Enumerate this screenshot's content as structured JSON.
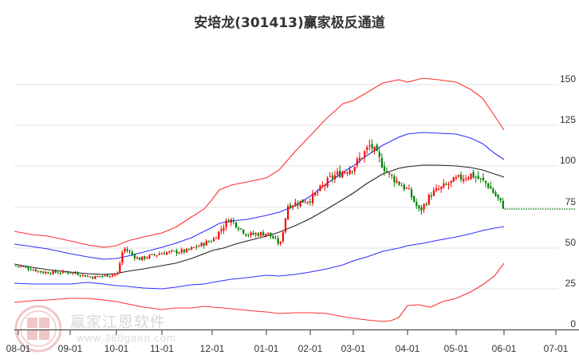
{
  "title": "安培龙(301413)赢家极反通道",
  "watermark": {
    "brand": "赢家江恩软件",
    "url": "www.360gann.com",
    "seal_chars": [
      "江",
      "赢",
      "恩",
      "家"
    ]
  },
  "colors": {
    "up_candle": "#ff0000",
    "down_candle": "#008000",
    "outer_band": "#ff0000",
    "inner_band": "#0000ff",
    "mid_line": "#000000",
    "last_price_line": "#008000",
    "grid": "#e0e0e0",
    "axis": "#333333"
  },
  "chart_data": {
    "type": "candlestick-with-bands",
    "title": "安培龙(301413)赢家极反通道",
    "xlabel": "",
    "ylabel": "",
    "ylim": [
      0,
      150
    ],
    "y_ticks": [
      0,
      25,
      50,
      75,
      100,
      125,
      150
    ],
    "y_axis_position": "right",
    "grid": true,
    "x_ticks": [
      "08-01",
      "09-01",
      "10-01",
      "11-01",
      "12-01",
      "01-01",
      "02-01",
      "03-01",
      "04-01",
      "05-01",
      "06-01",
      "07-01"
    ],
    "last_price": 74,
    "series": [
      {
        "name": "upper_outer_band",
        "color": "#ff0000",
        "points": [
          [
            "08-01",
            62
          ],
          [
            "09-01",
            57
          ],
          [
            "10-01",
            50
          ],
          [
            "10-15",
            51
          ],
          [
            "11-01",
            55
          ],
          [
            "11-15",
            60
          ],
          [
            "12-01",
            67
          ],
          [
            "12-15",
            73
          ],
          [
            "01-01",
            78
          ],
          [
            "01-15",
            84
          ],
          [
            "02-01",
            95
          ],
          [
            "02-15",
            108
          ],
          [
            "03-01",
            122
          ],
          [
            "03-15",
            134
          ],
          [
            "04-01",
            148
          ],
          [
            "04-10",
            152
          ],
          [
            "04-20",
            148
          ],
          [
            "05-01",
            151
          ],
          [
            "05-15",
            146
          ],
          [
            "06-01",
            121
          ]
        ]
      },
      {
        "name": "upper_inner_band",
        "color": "#0000ff",
        "points": [
          [
            "08-01",
            55
          ],
          [
            "09-01",
            51
          ],
          [
            "10-01",
            45
          ],
          [
            "10-15",
            46
          ],
          [
            "11-01",
            50
          ],
          [
            "11-15",
            53
          ],
          [
            "12-01",
            57
          ],
          [
            "12-15",
            62
          ],
          [
            "01-01",
            64
          ],
          [
            "01-15",
            66
          ],
          [
            "02-01",
            70
          ],
          [
            "02-15",
            80
          ],
          [
            "03-01",
            91
          ],
          [
            "03-15",
            103
          ],
          [
            "04-01",
            117
          ],
          [
            "04-10",
            124
          ],
          [
            "04-20",
            122
          ],
          [
            "05-01",
            124
          ],
          [
            "05-15",
            120
          ],
          [
            "06-01",
            105
          ]
        ]
      },
      {
        "name": "middle_line",
        "color": "#000000",
        "points": [
          [
            "08-01",
            40
          ],
          [
            "09-01",
            35
          ],
          [
            "10-01",
            34
          ],
          [
            "10-15",
            36
          ],
          [
            "11-01",
            38
          ],
          [
            "11-15",
            42
          ],
          [
            "12-01",
            46
          ],
          [
            "12-15",
            49
          ],
          [
            "01-01",
            52
          ],
          [
            "01-15",
            55
          ],
          [
            "02-01",
            60
          ],
          [
            "02-15",
            65
          ],
          [
            "03-01",
            72
          ],
          [
            "03-15",
            80
          ],
          [
            "04-01",
            89
          ],
          [
            "04-10",
            93
          ],
          [
            "04-20",
            93
          ],
          [
            "05-01",
            93
          ],
          [
            "05-15",
            92
          ],
          [
            "06-01",
            88
          ]
        ]
      },
      {
        "name": "lower_inner_band",
        "color": "#0000ff",
        "points": [
          [
            "08-01",
            28
          ],
          [
            "09-01",
            28
          ],
          [
            "10-01",
            27
          ],
          [
            "10-15",
            25
          ],
          [
            "11-01",
            24
          ],
          [
            "11-15",
            27
          ],
          [
            "12-01",
            29
          ],
          [
            "12-15",
            30
          ],
          [
            "01-01",
            33
          ],
          [
            "01-15",
            33
          ],
          [
            "02-01",
            35
          ],
          [
            "02-15",
            38
          ],
          [
            "03-01",
            42
          ],
          [
            "03-15",
            45
          ],
          [
            "04-01",
            50
          ],
          [
            "04-15",
            52
          ],
          [
            "05-01",
            56
          ],
          [
            "05-15",
            60
          ],
          [
            "06-01",
            63
          ]
        ]
      },
      {
        "name": "lower_outer_band",
        "color": "#ff0000",
        "points": [
          [
            "08-01",
            17
          ],
          [
            "09-01",
            19
          ],
          [
            "10-01",
            18
          ],
          [
            "10-15",
            13
          ],
          [
            "11-01",
            11
          ],
          [
            "11-15",
            13
          ],
          [
            "12-01",
            14
          ],
          [
            "12-15",
            10
          ],
          [
            "01-01",
            9
          ],
          [
            "01-15",
            11
          ],
          [
            "02-01",
            9
          ],
          [
            "02-15",
            6
          ],
          [
            "03-01",
            4
          ],
          [
            "03-15",
            7
          ],
          [
            "04-01",
            18
          ],
          [
            "04-10",
            16
          ],
          [
            "04-20",
            19
          ],
          [
            "05-01",
            24
          ],
          [
            "05-15",
            32
          ],
          [
            "06-01",
            41
          ]
        ]
      },
      {
        "name": "price_close",
        "color_up": "#ff0000",
        "color_down": "#008000",
        "points": [
          [
            "08-01",
            39
          ],
          [
            "08-15",
            35
          ],
          [
            "09-01",
            35
          ],
          [
            "09-15",
            32
          ],
          [
            "10-01",
            34
          ],
          [
            "10-05",
            50
          ],
          [
            "10-15",
            43
          ],
          [
            "11-01",
            47
          ],
          [
            "11-15",
            48
          ],
          [
            "12-01",
            55
          ],
          [
            "12-10",
            68
          ],
          [
            "12-20",
            58
          ],
          [
            "01-01",
            59
          ],
          [
            "01-10",
            52
          ],
          [
            "01-15",
            76
          ],
          [
            "02-01",
            80
          ],
          [
            "02-15",
            93
          ],
          [
            "03-01",
            100
          ],
          [
            "03-10",
            113
          ],
          [
            "03-20",
            95
          ],
          [
            "04-01",
            85
          ],
          [
            "04-08",
            72
          ],
          [
            "04-15",
            83
          ],
          [
            "05-01",
            92
          ],
          [
            "05-10",
            95
          ],
          [
            "05-20",
            89
          ],
          [
            "06-01",
            74
          ]
        ]
      }
    ]
  }
}
